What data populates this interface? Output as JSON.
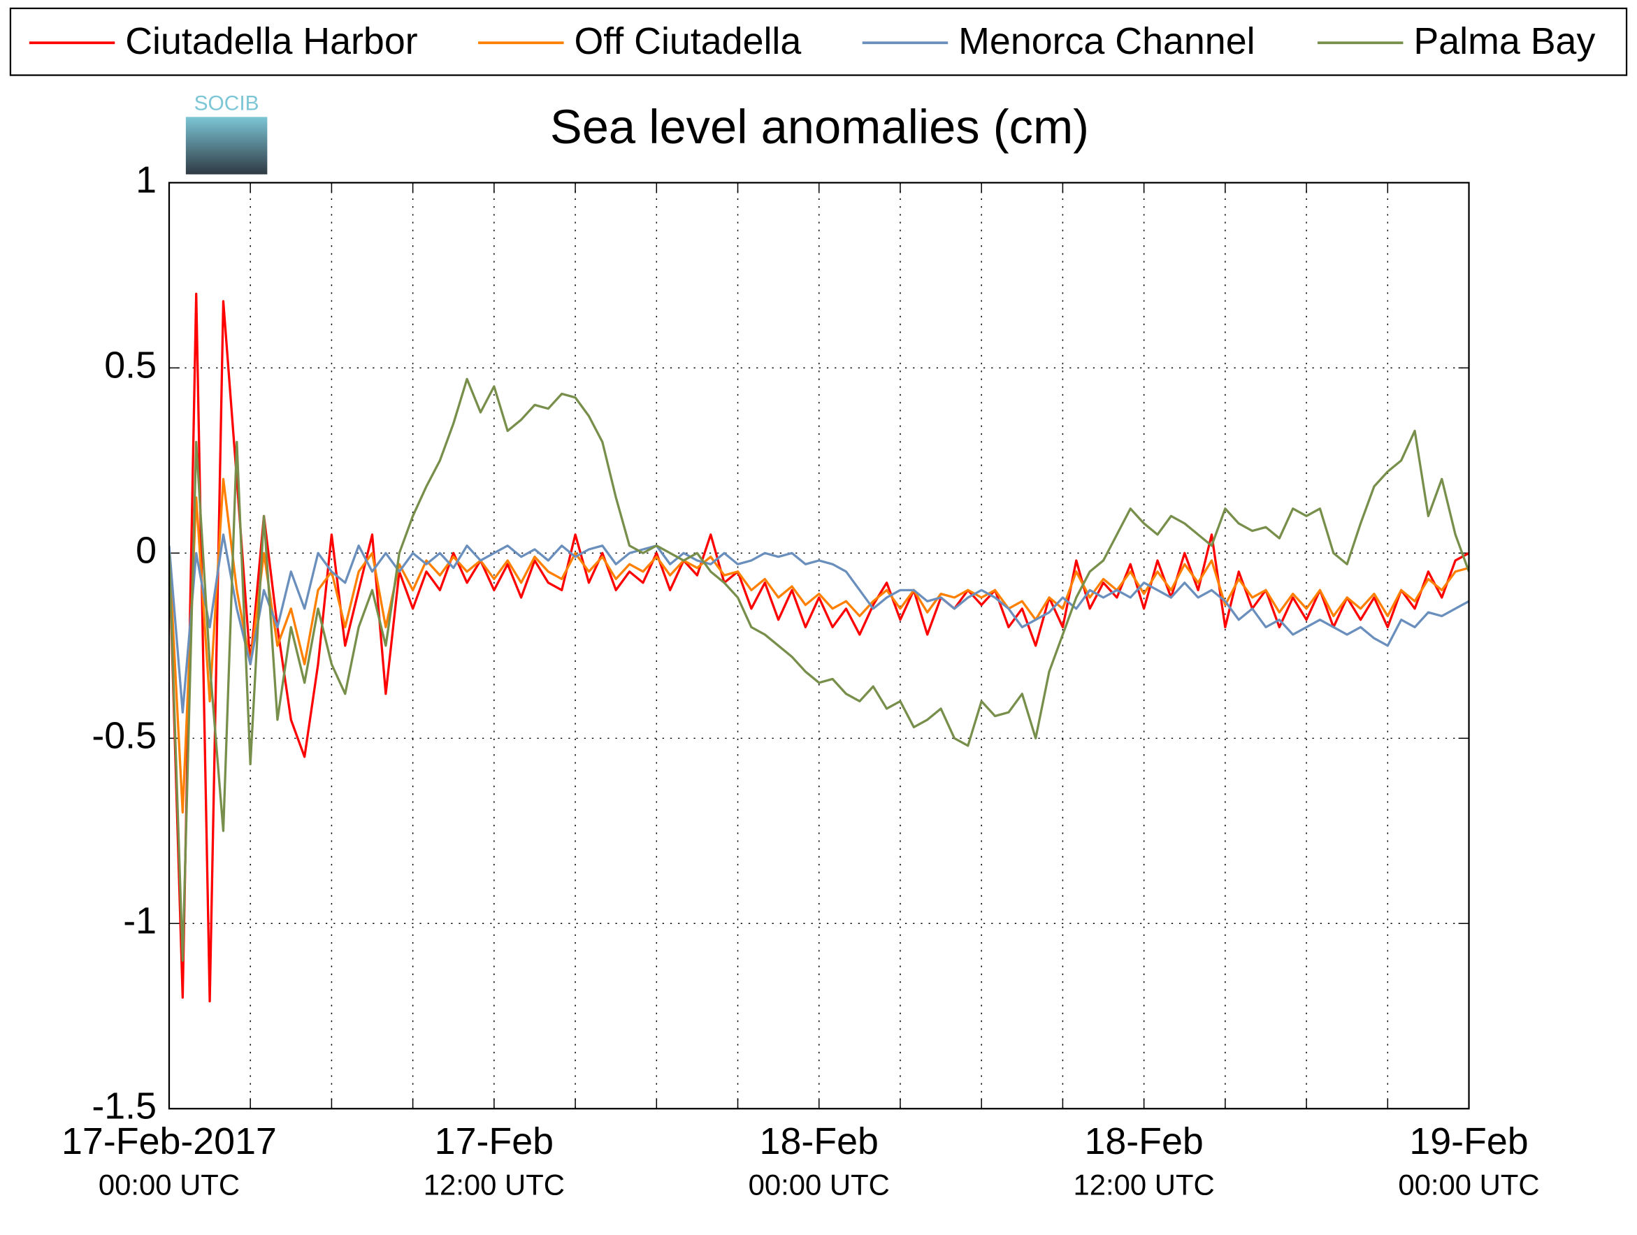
{
  "chart_data": {
    "type": "line",
    "title": "Sea level anomalies (cm)",
    "logo": "SOCIB",
    "x": [
      "2017-02-17 00:00",
      "2017-02-17 00:30",
      "2017-02-17 01:00",
      "2017-02-17 01:30",
      "2017-02-17 02:00",
      "2017-02-17 02:30",
      "2017-02-17 03:00",
      "2017-02-17 03:30",
      "2017-02-17 04:00",
      "2017-02-17 04:30",
      "2017-02-17 05:00",
      "2017-02-17 05:30",
      "2017-02-17 06:00",
      "2017-02-17 06:30",
      "2017-02-17 07:00",
      "2017-02-17 07:30",
      "2017-02-17 08:00",
      "2017-02-17 08:30",
      "2017-02-17 09:00",
      "2017-02-17 09:30",
      "2017-02-17 10:00",
      "2017-02-17 10:30",
      "2017-02-17 11:00",
      "2017-02-17 11:30",
      "2017-02-17 12:00",
      "2017-02-17 12:30",
      "2017-02-17 13:00",
      "2017-02-17 13:30",
      "2017-02-17 14:00",
      "2017-02-17 14:30",
      "2017-02-17 15:00",
      "2017-02-17 15:30",
      "2017-02-17 16:00",
      "2017-02-17 16:30",
      "2017-02-17 17:00",
      "2017-02-17 17:30",
      "2017-02-17 18:00",
      "2017-02-17 18:30",
      "2017-02-17 19:00",
      "2017-02-17 19:30",
      "2017-02-17 20:00",
      "2017-02-17 20:30",
      "2017-02-17 21:00",
      "2017-02-17 21:30",
      "2017-02-17 22:00",
      "2017-02-17 22:30",
      "2017-02-17 23:00",
      "2017-02-17 23:30",
      "2017-02-18 00:00",
      "2017-02-18 00:30",
      "2017-02-18 01:00",
      "2017-02-18 01:30",
      "2017-02-18 02:00",
      "2017-02-18 02:30",
      "2017-02-18 03:00",
      "2017-02-18 03:30",
      "2017-02-18 04:00",
      "2017-02-18 04:30",
      "2017-02-18 05:00",
      "2017-02-18 05:30",
      "2017-02-18 06:00",
      "2017-02-18 06:30",
      "2017-02-18 07:00",
      "2017-02-18 07:30",
      "2017-02-18 08:00",
      "2017-02-18 08:30",
      "2017-02-18 09:00",
      "2017-02-18 09:30",
      "2017-02-18 10:00",
      "2017-02-18 10:30",
      "2017-02-18 11:00",
      "2017-02-18 11:30",
      "2017-02-18 12:00",
      "2017-02-18 12:30",
      "2017-02-18 13:00",
      "2017-02-18 13:30",
      "2017-02-18 14:00",
      "2017-02-18 14:30",
      "2017-02-18 15:00",
      "2017-02-18 15:30",
      "2017-02-18 16:00",
      "2017-02-18 16:30",
      "2017-02-18 17:00",
      "2017-02-18 17:30",
      "2017-02-18 18:00",
      "2017-02-18 18:30",
      "2017-02-18 19:00",
      "2017-02-18 19:30",
      "2017-02-18 20:00",
      "2017-02-18 20:30",
      "2017-02-18 21:00",
      "2017-02-18 21:30",
      "2017-02-18 22:00",
      "2017-02-18 22:30",
      "2017-02-18 23:00",
      "2017-02-18 23:30",
      "2017-02-19 00:00"
    ],
    "series": [
      {
        "name": "Ciutadella Harbor",
        "color": "#ff0000",
        "values": [
          0,
          -1.2,
          0.7,
          -1.21,
          0.68,
          0.2,
          -0.3,
          0.1,
          -0.2,
          -0.45,
          -0.55,
          -0.3,
          0.05,
          -0.25,
          -0.1,
          0.05,
          -0.38,
          -0.05,
          -0.15,
          -0.05,
          -0.1,
          0,
          -0.08,
          -0.02,
          -0.1,
          -0.03,
          -0.12,
          -0.02,
          -0.08,
          -0.1,
          0.05,
          -0.08,
          0,
          -0.1,
          -0.05,
          -0.08,
          0,
          -0.1,
          -0.02,
          -0.06,
          0.05,
          -0.08,
          -0.05,
          -0.15,
          -0.08,
          -0.18,
          -0.1,
          -0.2,
          -0.12,
          -0.2,
          -0.15,
          -0.22,
          -0.14,
          -0.08,
          -0.18,
          -0.1,
          -0.22,
          -0.12,
          -0.15,
          -0.1,
          -0.14,
          -0.1,
          -0.2,
          -0.15,
          -0.25,
          -0.12,
          -0.2,
          -0.02,
          -0.15,
          -0.08,
          -0.12,
          -0.03,
          -0.15,
          -0.02,
          -0.12,
          0,
          -0.1,
          0.05,
          -0.2,
          -0.05,
          -0.15,
          -0.1,
          -0.2,
          -0.12,
          -0.18,
          -0.1,
          -0.2,
          -0.12,
          -0.18,
          -0.12,
          -0.2,
          -0.1,
          -0.15,
          -0.05,
          -0.12,
          -0.02,
          0
        ]
      },
      {
        "name": "Off Ciutadella",
        "color": "#ff8000",
        "values": [
          0,
          -0.7,
          0.15,
          -0.4,
          0.2,
          -0.1,
          -0.3,
          0,
          -0.25,
          -0.15,
          -0.3,
          -0.1,
          -0.05,
          -0.2,
          -0.05,
          0,
          -0.2,
          -0.03,
          -0.1,
          -0.02,
          -0.06,
          -0.01,
          -0.05,
          -0.02,
          -0.07,
          -0.02,
          -0.08,
          -0.01,
          -0.05,
          -0.07,
          0,
          -0.05,
          -0.01,
          -0.07,
          -0.03,
          -0.05,
          -0.01,
          -0.06,
          -0.02,
          -0.04,
          -0.01,
          -0.06,
          -0.05,
          -0.1,
          -0.07,
          -0.12,
          -0.09,
          -0.14,
          -0.11,
          -0.15,
          -0.13,
          -0.17,
          -0.13,
          -0.1,
          -0.15,
          -0.1,
          -0.16,
          -0.11,
          -0.12,
          -0.1,
          -0.12,
          -0.1,
          -0.15,
          -0.13,
          -0.18,
          -0.12,
          -0.15,
          -0.05,
          -0.12,
          -0.07,
          -0.1,
          -0.05,
          -0.11,
          -0.05,
          -0.1,
          -0.03,
          -0.08,
          -0.02,
          -0.14,
          -0.07,
          -0.12,
          -0.1,
          -0.16,
          -0.11,
          -0.15,
          -0.1,
          -0.17,
          -0.12,
          -0.15,
          -0.11,
          -0.17,
          -0.1,
          -0.13,
          -0.07,
          -0.1,
          -0.05,
          -0.04
        ]
      },
      {
        "name": "Menorca Channel",
        "color": "#6a8fbd",
        "values": [
          0.02,
          -0.43,
          0,
          -0.2,
          0.05,
          -0.15,
          -0.3,
          -0.1,
          -0.2,
          -0.05,
          -0.15,
          0,
          -0.05,
          -0.08,
          0.02,
          -0.05,
          0,
          -0.05,
          0,
          -0.03,
          0,
          -0.04,
          0.02,
          -0.02,
          0,
          0.02,
          -0.01,
          0.01,
          -0.02,
          0.02,
          -0.01,
          0.01,
          0.02,
          -0.03,
          0,
          0.01,
          0.02,
          -0.03,
          0,
          -0.02,
          -0.03,
          0,
          -0.03,
          -0.02,
          0,
          -0.01,
          0,
          -0.03,
          -0.02,
          -0.03,
          -0.05,
          -0.1,
          -0.15,
          -0.12,
          -0.1,
          -0.1,
          -0.13,
          -0.12,
          -0.15,
          -0.12,
          -0.1,
          -0.12,
          -0.15,
          -0.2,
          -0.18,
          -0.16,
          -0.12,
          -0.15,
          -0.1,
          -0.12,
          -0.1,
          -0.12,
          -0.08,
          -0.1,
          -0.12,
          -0.08,
          -0.12,
          -0.1,
          -0.13,
          -0.18,
          -0.15,
          -0.2,
          -0.18,
          -0.22,
          -0.2,
          -0.18,
          -0.2,
          -0.22,
          -0.2,
          -0.23,
          -0.25,
          -0.18,
          -0.2,
          -0.16,
          -0.17,
          -0.15,
          -0.13
        ]
      },
      {
        "name": "Palma Bay",
        "color": "#778f4a",
        "values": [
          0,
          -1.1,
          0.3,
          -0.3,
          -0.75,
          0.3,
          -0.57,
          0.1,
          -0.45,
          -0.2,
          -0.35,
          -0.15,
          -0.3,
          -0.38,
          -0.2,
          -0.1,
          -0.25,
          0,
          0.1,
          0.18,
          0.25,
          0.35,
          0.47,
          0.38,
          0.45,
          0.33,
          0.36,
          0.4,
          0.39,
          0.43,
          0.42,
          0.37,
          0.3,
          0.15,
          0.02,
          0,
          0.02,
          0,
          -0.02,
          0,
          -0.05,
          -0.08,
          -0.12,
          -0.2,
          -0.22,
          -0.25,
          -0.28,
          -0.32,
          -0.35,
          -0.34,
          -0.38,
          -0.4,
          -0.36,
          -0.42,
          -0.4,
          -0.47,
          -0.45,
          -0.42,
          -0.5,
          -0.52,
          -0.4,
          -0.44,
          -0.43,
          -0.38,
          -0.5,
          -0.32,
          -0.22,
          -0.12,
          -0.05,
          -0.02,
          0.05,
          0.12,
          0.08,
          0.05,
          0.1,
          0.08,
          0.05,
          0.02,
          0.12,
          0.08,
          0.06,
          0.07,
          0.04,
          0.12,
          0.1,
          0.12,
          0,
          -0.03,
          0.08,
          0.18,
          0.22,
          0.25,
          0.33,
          0.1,
          0.2,
          0.05,
          -0.05
        ]
      }
    ],
    "xlim": [
      "2017-02-17 00:00",
      "2017-02-19 00:00"
    ],
    "xticks": [
      {
        "value": "2017-02-17 00:00",
        "label": [
          "17-Feb-2017",
          "00:00 UTC"
        ]
      },
      {
        "value": "2017-02-17 12:00",
        "label": [
          "17-Feb",
          "12:00 UTC"
        ]
      },
      {
        "value": "2017-02-18 00:00",
        "label": [
          "18-Feb",
          "00:00 UTC"
        ]
      },
      {
        "value": "2017-02-18 12:00",
        "label": [
          "18-Feb",
          "12:00 UTC"
        ]
      },
      {
        "value": "2017-02-19 00:00",
        "label": [
          "19-Feb",
          "00:00 UTC"
        ]
      }
    ],
    "xminorticks": [
      "2017-02-17 03:00",
      "2017-02-17 06:00",
      "2017-02-17 09:00",
      "2017-02-17 15:00",
      "2017-02-17 18:00",
      "2017-02-17 21:00",
      "2017-02-18 03:00",
      "2017-02-18 06:00",
      "2017-02-18 09:00",
      "2017-02-18 15:00",
      "2017-02-18 18:00",
      "2017-02-18 21:00"
    ],
    "ylim": [
      -1.5,
      1
    ],
    "yticks": [
      -1.5,
      -1,
      -0.5,
      0,
      0.5,
      1
    ],
    "grid": true,
    "legend": "top"
  }
}
